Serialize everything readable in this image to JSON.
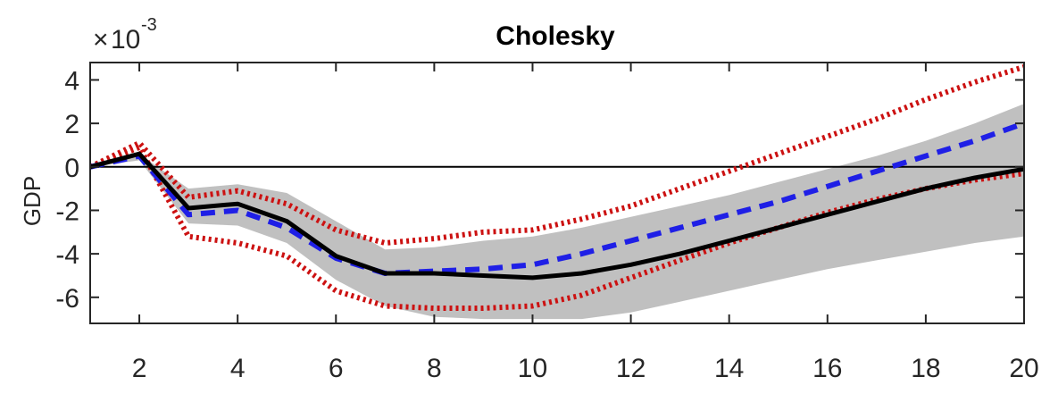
{
  "chart_data": {
    "type": "line",
    "title": "Cholesky",
    "xlabel": "",
    "ylabel": "GDP",
    "exponent_label": {
      "times": "×",
      "base": "10",
      "power": "-3"
    },
    "xlim": [
      1,
      20
    ],
    "ylim": [
      -7.2,
      4.8
    ],
    "xticks": [
      2,
      4,
      6,
      8,
      10,
      12,
      14,
      16,
      18,
      20
    ],
    "yticks": [
      4,
      2,
      0,
      -2,
      -4,
      -6
    ],
    "ytick_labels": [
      "4",
      "2",
      "0",
      "-2",
      "-4",
      "-6"
    ],
    "grid": false,
    "legend": false,
    "x": [
      1,
      2,
      3,
      4,
      5,
      6,
      7,
      8,
      9,
      10,
      11,
      12,
      13,
      14,
      15,
      16,
      17,
      18,
      19,
      20
    ],
    "shaded_band": {
      "color": "#c0c0c0",
      "upper": [
        0,
        0.6,
        -1.0,
        -0.8,
        -1.2,
        -2.5,
        -3.8,
        -3.7,
        -3.4,
        -3.2,
        -2.8,
        -2.3,
        -1.8,
        -1.3,
        -0.7,
        -0.1,
        0.5,
        1.2,
        2.0,
        2.9
      ],
      "lower": [
        0,
        0.3,
        -2.6,
        -2.7,
        -3.5,
        -5.2,
        -6.4,
        -6.9,
        -7.0,
        -7.0,
        -7.0,
        -6.7,
        -6.2,
        -5.7,
        -5.2,
        -4.7,
        -4.3,
        -3.9,
        -3.5,
        -3.2
      ]
    },
    "series": [
      {
        "values": [
          0,
          0.6,
          -1.9,
          -1.7,
          -2.5,
          -4.1,
          -4.9,
          -4.9,
          -5.0,
          -5.1,
          -4.9,
          -4.5,
          -4.0,
          -3.4,
          -2.8,
          -2.2,
          -1.6,
          -1.0,
          -0.5,
          -0.1
        ],
        "color": "#000000",
        "style": "solid"
      },
      {
        "values": [
          0,
          0.5,
          -2.2,
          -2.0,
          -2.8,
          -4.2,
          -4.9,
          -4.8,
          -4.7,
          -4.5,
          -4.0,
          -3.4,
          -2.8,
          -2.2,
          -1.6,
          -0.9,
          -0.2,
          0.5,
          1.2,
          2.0
        ],
        "color": "#1f1fe6",
        "style": "dashed"
      },
      {
        "values": [
          0,
          1.1,
          -1.4,
          -1.1,
          -1.7,
          -2.9,
          -3.5,
          -3.3,
          -3.0,
          -2.9,
          -2.4,
          -1.8,
          -1.0,
          -0.2,
          0.6,
          1.4,
          2.2,
          3.1,
          3.9,
          4.6
        ],
        "color": "#cc1111",
        "style": "dotted"
      },
      {
        "values": [
          0,
          0.9,
          -3.2,
          -3.5,
          -4.1,
          -5.7,
          -6.4,
          -6.5,
          -6.5,
          -6.4,
          -5.9,
          -5.1,
          -4.3,
          -3.5,
          -2.8,
          -2.1,
          -1.5,
          -1.0,
          -0.6,
          -0.3
        ],
        "color": "#cc1111",
        "style": "dotted"
      }
    ],
    "reference_line": {
      "y": 0,
      "color": "#000000"
    }
  }
}
